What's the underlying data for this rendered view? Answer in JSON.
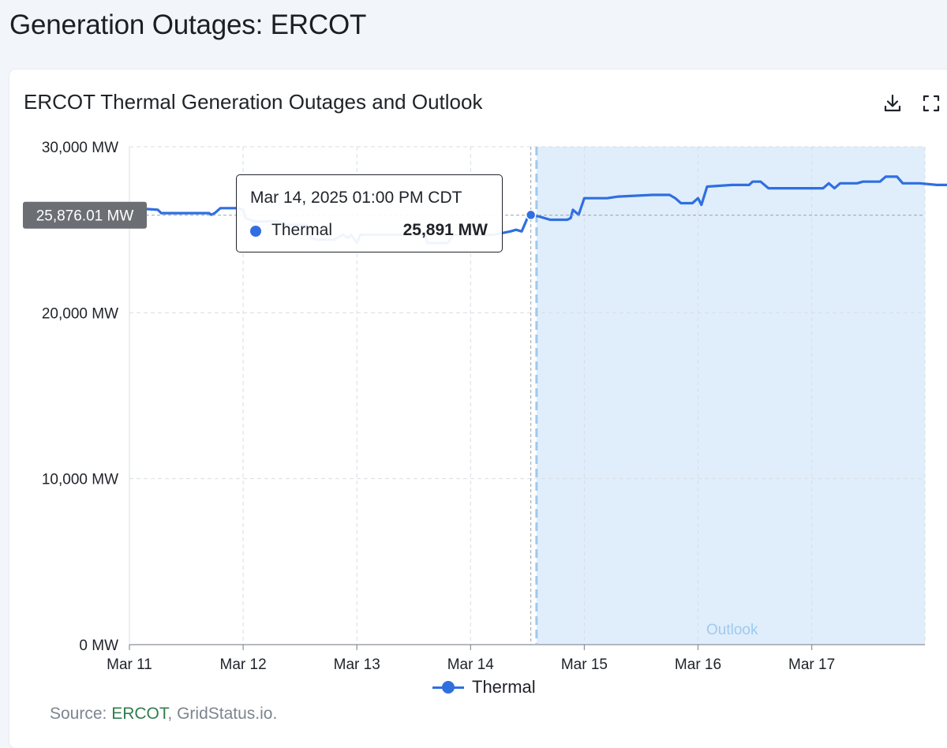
{
  "page_title": "Generation Outages: ERCOT",
  "card": {
    "title": "ERCOT Thermal Generation Outages and Outlook",
    "download_icon": "download-icon",
    "fullscreen_icon": "fullscreen-icon"
  },
  "tooltip": {
    "date": "Mar 14, 2025 01:00 PM CDT",
    "series": "Thermal",
    "value": "25,891 MW"
  },
  "crosshair_label": "25,876.01 MW",
  "legend": {
    "label": "Thermal"
  },
  "source": {
    "prefix": "Source: ",
    "link": "ERCOT",
    "suffix": ", GridStatus.io."
  },
  "colors": {
    "series": "#2f6fe0",
    "series_faded": "#c3d6f6",
    "outlook_band": "#e0eefb",
    "outlook_line": "#9dcaf0",
    "outlook_text": "#9dcaf0",
    "crosshair_badge": "#6b6e72",
    "link": "#2f7d4f"
  },
  "chart_data": {
    "type": "line",
    "title": "ERCOT Thermal Generation Outages and Outlook",
    "y_unit": "MW",
    "ylim": [
      0,
      30000
    ],
    "y_ticks": [
      {
        "value": 0,
        "label": "0 MW"
      },
      {
        "value": 10000,
        "label": "10,000 MW"
      },
      {
        "value": 20000,
        "label": "20,000 MW"
      },
      {
        "value": 30000,
        "label": "30,000 MW"
      }
    ],
    "x_ticks": [
      {
        "value": 0,
        "label": "Mar 11"
      },
      {
        "value": 1,
        "label": "Mar 12"
      },
      {
        "value": 2,
        "label": "Mar 13"
      },
      {
        "value": 3,
        "label": "Mar 14"
      },
      {
        "value": 4,
        "label": "Mar 15"
      },
      {
        "value": 5,
        "label": "Mar 16"
      },
      {
        "value": 6,
        "label": "Mar 17"
      }
    ],
    "xlim": [
      0,
      7
    ],
    "grid": true,
    "legend_position": "bottom-center",
    "outlook": {
      "start": 3.58,
      "label": "Outlook"
    },
    "highlight": {
      "x": 3.53,
      "y": 25891
    },
    "crosshair_y": 25876.01,
    "series": [
      {
        "name": "Thermal",
        "points": [
          [
            0.0,
            26200
          ],
          [
            0.15,
            26250
          ],
          [
            0.25,
            26200
          ],
          [
            0.28,
            26000
          ],
          [
            0.7,
            26000
          ],
          [
            0.72,
            25900
          ],
          [
            0.75,
            26000
          ],
          [
            0.8,
            26300
          ],
          [
            0.95,
            26300
          ],
          [
            1.0,
            26200
          ],
          [
            1.02,
            25700
          ],
          [
            1.1,
            25500
          ],
          [
            1.3,
            25500
          ],
          [
            1.35,
            25300
          ],
          [
            1.55,
            25300
          ],
          [
            1.6,
            24500
          ],
          [
            1.65,
            24400
          ],
          [
            1.8,
            24400
          ],
          [
            1.85,
            24600
          ],
          [
            1.88,
            24700
          ],
          [
            1.92,
            24500
          ],
          [
            1.95,
            24700
          ],
          [
            2.0,
            24200
          ],
          [
            2.03,
            24700
          ],
          [
            2.2,
            24700
          ],
          [
            2.6,
            24700
          ],
          [
            2.62,
            24200
          ],
          [
            2.8,
            24200
          ],
          [
            2.85,
            24700
          ],
          [
            3.2,
            24700
          ],
          [
            3.35,
            24900
          ],
          [
            3.4,
            25000
          ],
          [
            3.45,
            24900
          ],
          [
            3.5,
            25700
          ],
          [
            3.53,
            25891
          ],
          [
            3.6,
            25800
          ],
          [
            3.7,
            25600
          ],
          [
            3.85,
            25600
          ],
          [
            3.88,
            25700
          ],
          [
            3.9,
            26200
          ],
          [
            3.95,
            25900
          ],
          [
            4.0,
            26900
          ],
          [
            4.2,
            26900
          ],
          [
            4.3,
            27000
          ],
          [
            4.6,
            27100
          ],
          [
            4.75,
            27100
          ],
          [
            4.8,
            26900
          ],
          [
            4.85,
            26600
          ],
          [
            4.95,
            26600
          ],
          [
            5.0,
            26900
          ],
          [
            5.03,
            26500
          ],
          [
            5.08,
            27600
          ],
          [
            5.3,
            27700
          ],
          [
            5.45,
            27700
          ],
          [
            5.48,
            27900
          ],
          [
            5.55,
            27900
          ],
          [
            5.62,
            27500
          ],
          [
            5.9,
            27500
          ],
          [
            6.1,
            27500
          ],
          [
            6.15,
            27800
          ],
          [
            6.2,
            27500
          ],
          [
            6.25,
            27800
          ],
          [
            6.4,
            27800
          ],
          [
            6.45,
            27900
          ],
          [
            6.6,
            27900
          ],
          [
            6.65,
            28200
          ],
          [
            6.75,
            28200
          ],
          [
            6.8,
            27800
          ],
          [
            6.95,
            27800
          ],
          [
            7.1,
            27700
          ],
          [
            7.3,
            27700
          ],
          [
            7.4,
            27700
          ],
          [
            7.42,
            28000
          ],
          [
            7.45,
            26600
          ],
          [
            7.46,
            25876
          ]
        ]
      }
    ]
  }
}
